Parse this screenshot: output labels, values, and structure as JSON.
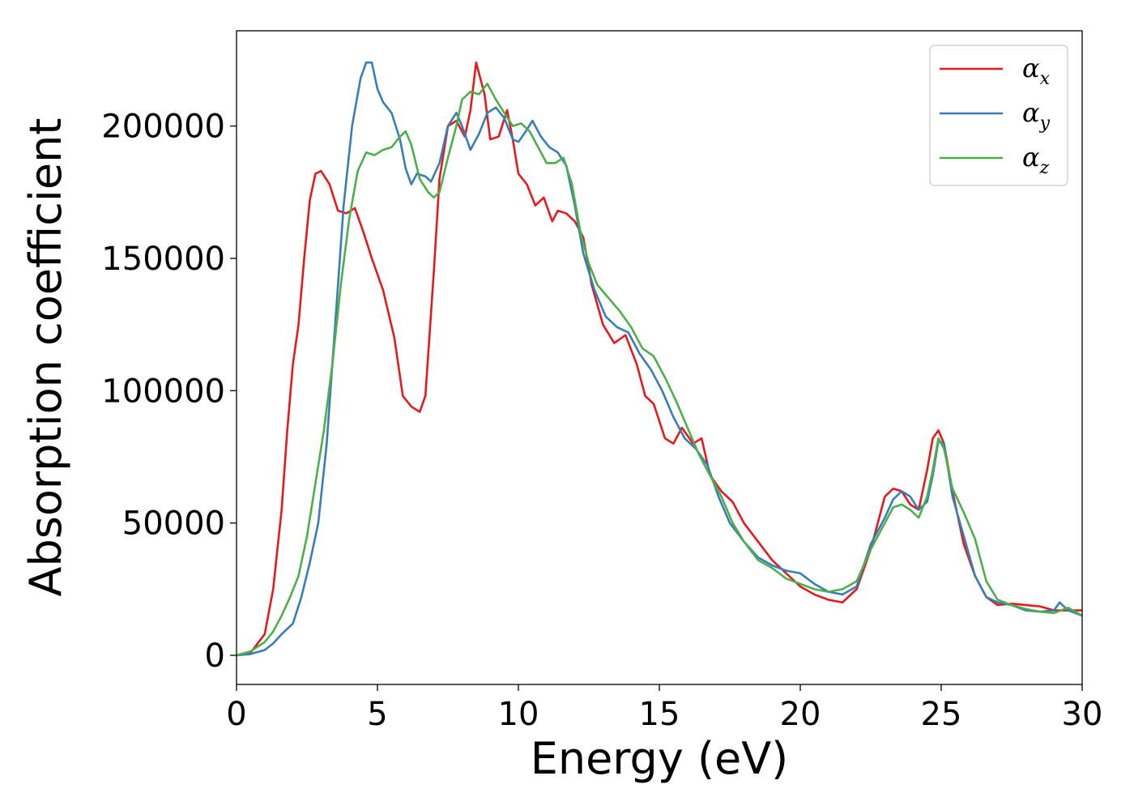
{
  "chart_data": {
    "type": "line",
    "title": "",
    "xlabel": "Energy (eV)",
    "ylabel": "Absorption coefficient",
    "xlim": [
      0,
      30
    ],
    "ylim": [
      -11000,
      236000
    ],
    "xticks": [
      0,
      5,
      10,
      15,
      20,
      25,
      30
    ],
    "yticks": [
      0,
      50000,
      100000,
      150000,
      200000
    ],
    "xtick_labels": [
      "0",
      "5",
      "10",
      "15",
      "20",
      "25",
      "30"
    ],
    "ytick_labels": [
      "0",
      "50000",
      "100000",
      "150000",
      "200000"
    ],
    "grid": false,
    "legend_position": "top-right",
    "series": [
      {
        "name": "α",
        "subscript": "x",
        "color": "#e41a1c",
        "x": [
          0,
          0.5,
          1.0,
          1.3,
          1.6,
          1.8,
          2.0,
          2.2,
          2.4,
          2.6,
          2.8,
          3.0,
          3.3,
          3.6,
          3.9,
          4.2,
          4.5,
          4.8,
          5.2,
          5.6,
          5.9,
          6.2,
          6.5,
          6.7,
          7.0,
          7.2,
          7.5,
          7.8,
          8.1,
          8.3,
          8.5,
          8.8,
          9.0,
          9.3,
          9.6,
          9.8,
          10.0,
          10.3,
          10.6,
          10.9,
          11.2,
          11.4,
          11.7,
          12.0,
          12.3,
          12.6,
          13.0,
          13.4,
          13.8,
          14.2,
          14.5,
          14.8,
          15.2,
          15.5,
          15.8,
          16.2,
          16.5,
          16.8,
          17.2,
          17.6,
          18.0,
          18.5,
          19.0,
          19.5,
          20.0,
          20.5,
          21.0,
          21.5,
          22.0,
          22.5,
          23.0,
          23.3,
          23.6,
          23.9,
          24.2,
          24.5,
          24.7,
          24.9,
          25.1,
          25.4,
          25.8,
          26.2,
          26.6,
          27.0,
          27.5,
          28.0,
          28.5,
          29.0,
          29.5,
          30.0
        ],
        "values": [
          0,
          1000,
          8000,
          25000,
          55000,
          85000,
          110000,
          125000,
          150000,
          172000,
          182000,
          183000,
          178000,
          168000,
          167000,
          169000,
          160000,
          150000,
          138000,
          120000,
          98000,
          94000,
          92000,
          98000,
          145000,
          180000,
          200000,
          202000,
          196000,
          206000,
          224000,
          212000,
          195000,
          196000,
          206000,
          195000,
          182000,
          178000,
          170000,
          173000,
          164000,
          168000,
          167000,
          164000,
          158000,
          140000,
          125000,
          118000,
          121000,
          110000,
          98000,
          95000,
          82000,
          80000,
          86000,
          80000,
          82000,
          68000,
          62000,
          58000,
          50000,
          43000,
          36000,
          31000,
          26000,
          23000,
          21000,
          20000,
          25000,
          40000,
          60000,
          63000,
          62000,
          57000,
          55000,
          70000,
          82000,
          85000,
          80000,
          62000,
          42000,
          30000,
          22000,
          19000,
          19500,
          19000,
          18500,
          17000,
          17000,
          17000
        ]
      },
      {
        "name": "α",
        "subscript": "y",
        "color": "#377eb8",
        "x": [
          0,
          0.5,
          1.0,
          1.3,
          1.6,
          2.0,
          2.3,
          2.6,
          2.9,
          3.2,
          3.5,
          3.8,
          4.1,
          4.4,
          4.6,
          4.8,
          5.0,
          5.2,
          5.5,
          5.8,
          6.0,
          6.2,
          6.4,
          6.7,
          6.9,
          7.2,
          7.5,
          7.8,
          8.0,
          8.3,
          8.6,
          8.9,
          9.2,
          9.5,
          9.8,
          10.0,
          10.2,
          10.5,
          10.8,
          11.1,
          11.4,
          11.7,
          12.0,
          12.3,
          12.7,
          13.1,
          13.5,
          13.9,
          14.3,
          14.7,
          15.1,
          15.5,
          15.9,
          16.3,
          16.7,
          17.1,
          17.5,
          18.0,
          18.5,
          19.0,
          19.5,
          20.0,
          20.5,
          21.0,
          21.5,
          22.0,
          22.5,
          23.0,
          23.3,
          23.6,
          23.9,
          24.2,
          24.5,
          24.7,
          24.9,
          25.1,
          25.4,
          25.8,
          26.2,
          26.6,
          27.0,
          27.5,
          28.0,
          28.5,
          29.0,
          29.2,
          29.5,
          30.0
        ],
        "values": [
          0,
          500,
          2000,
          4500,
          8000,
          12000,
          22000,
          35000,
          50000,
          80000,
          125000,
          170000,
          200000,
          218000,
          224000,
          224000,
          214000,
          209000,
          205000,
          195000,
          184000,
          178000,
          182000,
          181000,
          179000,
          186000,
          200000,
          205000,
          200000,
          191000,
          197000,
          205000,
          207000,
          203000,
          195000,
          194000,
          197000,
          202000,
          196000,
          192000,
          190000,
          185000,
          170000,
          152000,
          138000,
          128000,
          124000,
          122000,
          114000,
          108000,
          100000,
          90000,
          82000,
          78000,
          72000,
          60000,
          50000,
          43000,
          37000,
          34000,
          32000,
          31000,
          27000,
          24000,
          23000,
          26000,
          42000,
          52000,
          59000,
          62000,
          60000,
          55000,
          58000,
          68000,
          81000,
          80000,
          60000,
          45000,
          30000,
          22000,
          20000,
          19000,
          17000,
          16500,
          17000,
          20000,
          17000,
          15000
        ]
      },
      {
        "name": "α",
        "subscript": "z",
        "color": "#4daf4a",
        "x": [
          0,
          0.5,
          1.0,
          1.3,
          1.6,
          1.9,
          2.2,
          2.5,
          2.8,
          3.1,
          3.4,
          3.7,
          4.0,
          4.3,
          4.6,
          4.9,
          5.2,
          5.5,
          5.8,
          6.0,
          6.2,
          6.5,
          6.8,
          7.0,
          7.2,
          7.5,
          7.8,
          8.0,
          8.3,
          8.6,
          8.9,
          9.2,
          9.5,
          9.8,
          10.1,
          10.4,
          10.7,
          11.0,
          11.3,
          11.6,
          11.9,
          12.2,
          12.5,
          12.8,
          13.2,
          13.6,
          14.0,
          14.4,
          14.8,
          15.2,
          15.6,
          16.0,
          16.4,
          16.8,
          17.2,
          17.6,
          18.0,
          18.5,
          19.0,
          19.5,
          20.0,
          20.5,
          21.0,
          21.5,
          22.0,
          22.5,
          23.0,
          23.3,
          23.6,
          23.9,
          24.2,
          24.5,
          24.7,
          24.9,
          25.1,
          25.4,
          25.8,
          26.2,
          26.6,
          27.0,
          27.5,
          28.0,
          28.5,
          29.0,
          29.5,
          30.0
        ],
        "values": [
          0,
          1500,
          5000,
          9000,
          15000,
          22000,
          30000,
          45000,
          65000,
          85000,
          110000,
          140000,
          165000,
          183000,
          190000,
          189000,
          191000,
          192000,
          196000,
          198000,
          193000,
          180000,
          175000,
          173000,
          175000,
          188000,
          200000,
          210000,
          213000,
          212000,
          216000,
          210000,
          205000,
          200000,
          201000,
          198000,
          192000,
          186000,
          186000,
          188000,
          178000,
          160000,
          148000,
          140000,
          135000,
          130000,
          124000,
          116000,
          113000,
          105000,
          96000,
          86000,
          76000,
          68000,
          60000,
          50000,
          43000,
          36000,
          33000,
          29000,
          27000,
          25000,
          24000,
          25000,
          28000,
          40000,
          50000,
          56000,
          57000,
          55000,
          52000,
          60000,
          70000,
          82000,
          78000,
          63000,
          54000,
          44000,
          28000,
          21000,
          19000,
          17500,
          16500,
          16000,
          18000,
          15000
        ]
      }
    ]
  }
}
